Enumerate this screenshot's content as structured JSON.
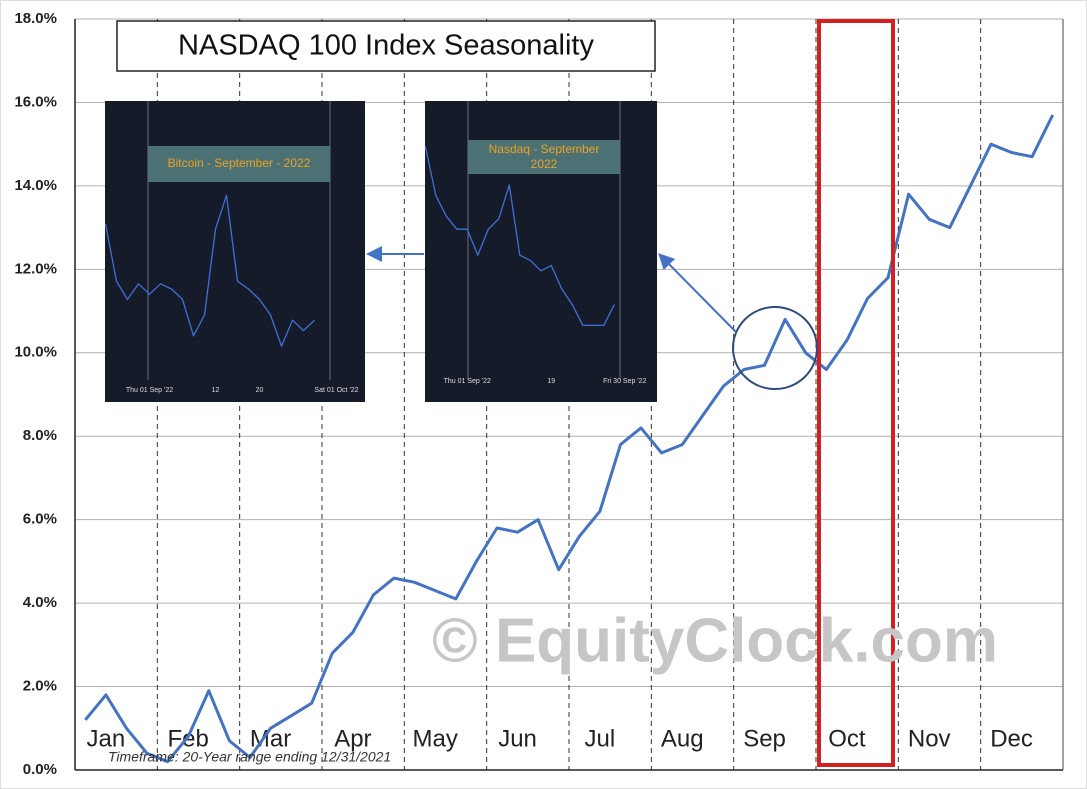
{
  "chart_data": [
    {
      "type": "line",
      "title": "NASDAQ 100 Index Seasonality",
      "color": "#4472c4",
      "categories": [
        null,
        "Jan",
        null,
        null,
        null,
        "Feb",
        null,
        null,
        null,
        "Mar",
        null,
        null,
        null,
        "Apr",
        null,
        null,
        null,
        "May",
        null,
        null,
        null,
        "Jun",
        null,
        null,
        null,
        "Jul",
        null,
        null,
        null,
        "Aug",
        null,
        null,
        null,
        "Sep",
        null,
        null,
        null,
        "Oct",
        null,
        null,
        null,
        "Nov",
        null,
        null,
        null,
        "Dec",
        null,
        null
      ],
      "values": [
        1.2,
        1.8,
        1.0,
        0.4,
        0.2,
        0.8,
        1.9,
        0.7,
        0.3,
        1.0,
        1.3,
        1.6,
        2.8,
        3.3,
        4.2,
        4.6,
        4.5,
        4.3,
        4.1,
        5.0,
        5.8,
        5.7,
        6.0,
        4.8,
        5.6,
        6.2,
        7.8,
        8.2,
        7.6,
        7.8,
        8.5,
        9.2,
        9.6,
        9.7,
        10.8,
        10.0,
        9.6,
        10.3,
        11.3,
        11.8,
        13.8,
        13.2,
        13.0,
        14.0,
        15.0,
        14.8,
        14.7,
        15.7
      ],
      "ylim": [
        0,
        18
      ],
      "yticks": [
        {
          "value": 0,
          "label": "0.0%"
        },
        {
          "value": 2,
          "label": "2.0%"
        },
        {
          "value": 4,
          "label": "4.0%"
        },
        {
          "value": 6,
          "label": "6.0%"
        },
        {
          "value": 8,
          "label": "8.0%"
        },
        {
          "value": 10,
          "label": "10.0%"
        },
        {
          "value": 12,
          "label": "12.0%"
        },
        {
          "value": 14,
          "label": "14.0%"
        },
        {
          "value": 16,
          "label": "16.0%"
        },
        {
          "value": 18,
          "label": "18.0%"
        }
      ],
      "grid": true,
      "annotations": [
        "© EquityClock.com",
        "Timeframe: 20-Year range ending 12/31/2021"
      ]
    },
    {
      "type": "line",
      "title": "Bitcoin - September - 2022",
      "color": "#3f6fd8",
      "categories": [
        null,
        null,
        null,
        null,
        "Thu 01 Sep '22",
        null,
        null,
        null,
        null,
        null,
        "12",
        null,
        null,
        null,
        "20",
        null,
        null,
        null,
        null,
        null,
        null,
        "Sat 01 Oct '22"
      ],
      "values": [
        60,
        38,
        31,
        37,
        33,
        37,
        35,
        31,
        17,
        25,
        58,
        71,
        38,
        35,
        31,
        25,
        13,
        23,
        19,
        23,
        null,
        null
      ],
      "ylim": [
        0,
        100
      ]
    },
    {
      "type": "line",
      "title": "Nasdaq - September 2022",
      "color": "#3f6fd8",
      "categories": [
        null,
        null,
        null,
        null,
        "Thu 01 Sep '22",
        null,
        null,
        null,
        null,
        null,
        null,
        null,
        "19",
        null,
        null,
        null,
        null,
        null,
        null,
        "Fri 30 Sep '22"
      ],
      "values": [
        90,
        71,
        63,
        58,
        58,
        48,
        58,
        62,
        75,
        48,
        46,
        42,
        44,
        35,
        29,
        21,
        21,
        21,
        29,
        null
      ],
      "ylim": [
        0,
        100
      ]
    }
  ]
}
